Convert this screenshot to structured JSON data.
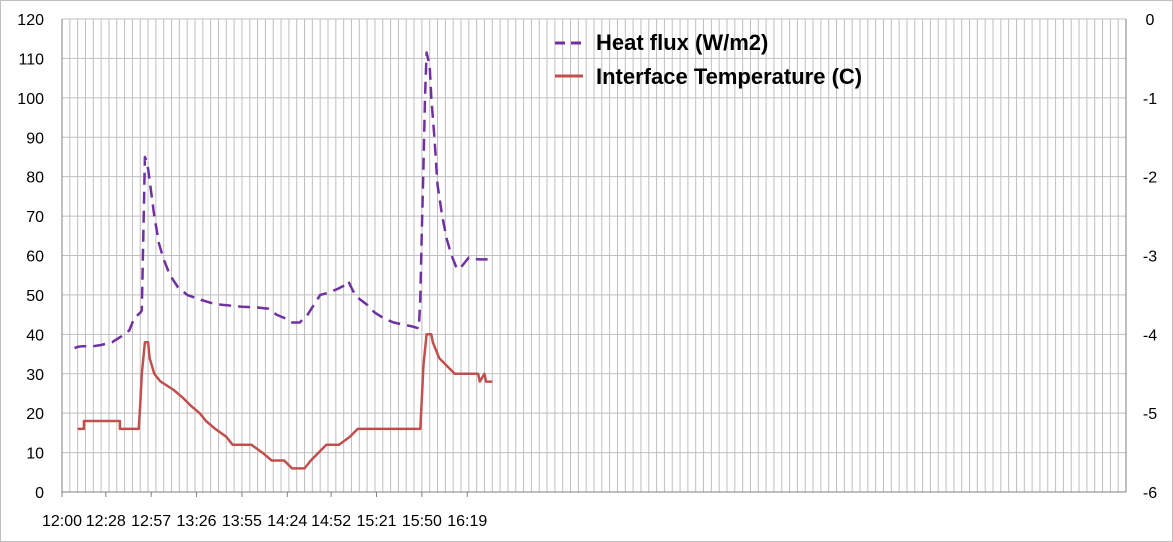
{
  "chart_data": {
    "type": "line",
    "title": "",
    "xlabel": "",
    "ylabel": "",
    "y2label": "",
    "x_tick_labels": [
      "12:00",
      "12:28",
      "12:57",
      "13:26",
      "13:55",
      "14:24",
      "14:52",
      "15:21",
      "15:50",
      "16:19"
    ],
    "x_range_minutes": [
      0,
      680
    ],
    "ylim_left": [
      0,
      120
    ],
    "ylim_right": [
      -6,
      0
    ],
    "y_left_ticks": [
      0,
      10,
      20,
      30,
      40,
      50,
      60,
      70,
      80,
      90,
      100,
      110,
      120
    ],
    "y_right_ticks": [
      0,
      -1,
      -2,
      -3,
      -4,
      -5,
      -6
    ],
    "grid": true,
    "legend_position": "top-center",
    "colors": {
      "heat_flux": "#7030a0",
      "interface_temperature": "#c0504d"
    },
    "series": [
      {
        "name": "Heat flux (W/m2)",
        "axis": "left",
        "style": "dashed",
        "points": [
          [
            "12:08",
            36.5
          ],
          [
            "12:10",
            36.8
          ],
          [
            "12:13",
            37
          ],
          [
            "12:20",
            37
          ],
          [
            "12:25",
            37.3
          ],
          [
            "12:32",
            38
          ],
          [
            "12:38",
            39.5
          ],
          [
            "12:43",
            41
          ],
          [
            "12:46",
            44
          ],
          [
            "12:50",
            45.5
          ],
          [
            "12:51",
            46
          ],
          [
            "12:52",
            66
          ],
          [
            "12:53",
            85
          ],
          [
            "12:54",
            84
          ],
          [
            "12:55",
            82
          ],
          [
            "12:57",
            76
          ],
          [
            "12:59",
            70
          ],
          [
            "13:02",
            63
          ],
          [
            "13:05",
            59
          ],
          [
            "13:09",
            55
          ],
          [
            "13:14",
            52
          ],
          [
            "13:20",
            50
          ],
          [
            "13:27",
            49
          ],
          [
            "13:35",
            48
          ],
          [
            "13:42",
            47.5
          ],
          [
            "13:55",
            47
          ],
          [
            "14:05",
            46.8
          ],
          [
            "14:12",
            46.5
          ],
          [
            "14:17",
            45
          ],
          [
            "14:23",
            44
          ],
          [
            "14:27",
            43
          ],
          [
            "14:32",
            43
          ],
          [
            "14:37",
            45
          ],
          [
            "14:41",
            47.5
          ],
          [
            "14:45",
            50
          ],
          [
            "14:50",
            50.5
          ],
          [
            "14:56",
            51.5
          ],
          [
            "15:01",
            52.5
          ],
          [
            "15:03",
            53.5
          ],
          [
            "15:06",
            51
          ],
          [
            "15:10",
            49
          ],
          [
            "15:15",
            47.5
          ],
          [
            "15:20",
            45.5
          ],
          [
            "15:26",
            44
          ],
          [
            "15:32",
            43
          ],
          [
            "15:38",
            42.5
          ],
          [
            "15:44",
            42
          ],
          [
            "15:48",
            41.5
          ],
          [
            "15:49",
            49
          ],
          [
            "15:50",
            67
          ],
          [
            "15:51",
            82
          ],
          [
            "15:52",
            100
          ],
          [
            "15:53",
            111.5
          ],
          [
            "15:55",
            108
          ],
          [
            "15:56",
            100
          ],
          [
            "15:58",
            90
          ],
          [
            "16:00",
            78
          ],
          [
            "16:03",
            70
          ],
          [
            "16:06",
            64
          ],
          [
            "16:09",
            60
          ],
          [
            "16:12",
            57
          ],
          [
            "16:14",
            56.5
          ],
          [
            "16:17",
            58
          ],
          [
            "16:20",
            59.5
          ],
          [
            "16:26",
            59
          ],
          [
            "16:32",
            59
          ]
        ]
      },
      {
        "name": "Interface Temperature (C)",
        "axis": "right",
        "style": "solid",
        "points": [
          [
            "12:10",
            -5.2
          ],
          [
            "12:14",
            -5.2
          ],
          [
            "12:14",
            -5.1
          ],
          [
            "12:26",
            -5.1
          ],
          [
            "12:37",
            -5.1
          ],
          [
            "12:37",
            -5.2
          ],
          [
            "12:49",
            -5.2
          ],
          [
            "12:50",
            -4.9
          ],
          [
            "12:51",
            -4.5
          ],
          [
            "12:53",
            -4.1
          ],
          [
            "12:55",
            -4.1
          ],
          [
            "12:56",
            -4.3
          ],
          [
            "12:59",
            -4.5
          ],
          [
            "13:03",
            -4.6
          ],
          [
            "13:11",
            -4.7
          ],
          [
            "13:17",
            -4.8
          ],
          [
            "13:22",
            -4.9
          ],
          [
            "13:28",
            -5.0
          ],
          [
            "13:32",
            -5.1
          ],
          [
            "13:38",
            -5.2
          ],
          [
            "13:45",
            -5.3
          ],
          [
            "13:49",
            -5.4
          ],
          [
            "14:01",
            -5.4
          ],
          [
            "14:08",
            -5.5
          ],
          [
            "14:14",
            -5.6
          ],
          [
            "14:22",
            -5.6
          ],
          [
            "14:27",
            -5.7
          ],
          [
            "14:35",
            -5.7
          ],
          [
            "14:39",
            -5.6
          ],
          [
            "14:44",
            -5.5
          ],
          [
            "14:49",
            -5.4
          ],
          [
            "14:57",
            -5.4
          ],
          [
            "15:04",
            -5.3
          ],
          [
            "15:09",
            -5.2
          ],
          [
            "15:49",
            -5.2
          ],
          [
            "15:50",
            -4.8
          ],
          [
            "15:51",
            -4.4
          ],
          [
            "15:53",
            -4.0
          ],
          [
            "15:56",
            -4.0
          ],
          [
            "15:57",
            -4.1
          ],
          [
            "15:59",
            -4.2
          ],
          [
            "16:01",
            -4.3
          ],
          [
            "16:06",
            -4.4
          ],
          [
            "16:11",
            -4.5
          ],
          [
            "16:19",
            -4.5
          ],
          [
            "16:26",
            -4.5
          ],
          [
            "16:27",
            -4.6
          ],
          [
            "16:30",
            -4.5
          ],
          [
            "16:31",
            -4.6
          ],
          [
            "16:35",
            -4.6
          ]
        ]
      }
    ]
  }
}
